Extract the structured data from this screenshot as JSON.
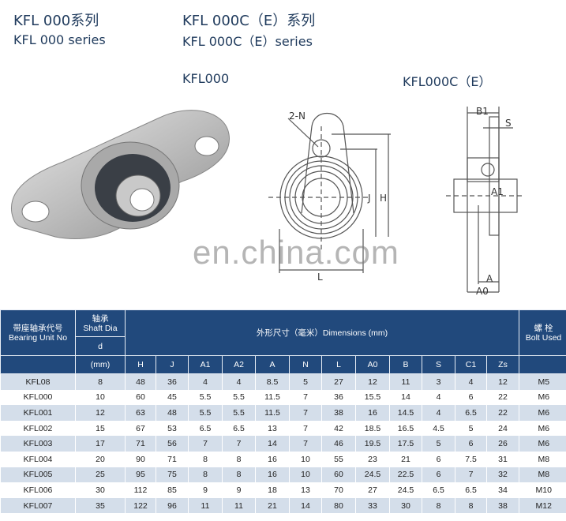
{
  "header": {
    "left_title_cn": "KFL 000系列",
    "left_title_en": "KFL 000 series",
    "right_title_cn": "KFL 000C（E）系列",
    "right_title_en": "KFL 000C（E）series",
    "label_kfl000": "KFL000",
    "label_kfl000c": "KFL000C（E）"
  },
  "drawing_labels": {
    "n": "2-N",
    "j": "J",
    "h": "H",
    "l": "L",
    "b1": "B1",
    "s": "S",
    "a1": "A1",
    "a": "A",
    "a0": "A0"
  },
  "watermark": "en.china.com",
  "table": {
    "unit_no_cn": "带座轴承代号",
    "unit_no_en": "Bearing Unit No",
    "shaft_cn": "轴承",
    "shaft_en": "Shaft Dia",
    "shaft_d": "d",
    "shaft_unit": "(mm)",
    "dims": "外形尺寸（毫米）Dimensions (mm)",
    "bolt_cn": "螺 栓",
    "bolt_en": "Bolt Used",
    "columns": [
      "H",
      "J",
      "A1",
      "A2",
      "A",
      "N",
      "L",
      "A0",
      "B",
      "S",
      "C1",
      "Zs"
    ],
    "rows": [
      [
        "KFL08",
        "8",
        "48",
        "36",
        "4",
        "4",
        "8.5",
        "5",
        "27",
        "12",
        "11",
        "3",
        "4",
        "12",
        "M5"
      ],
      [
        "KFL000",
        "10",
        "60",
        "45",
        "5.5",
        "5.5",
        "11.5",
        "7",
        "36",
        "15.5",
        "14",
        "4",
        "6",
        "22",
        "M6"
      ],
      [
        "KFL001",
        "12",
        "63",
        "48",
        "5.5",
        "5.5",
        "11.5",
        "7",
        "38",
        "16",
        "14.5",
        "4",
        "6.5",
        "22",
        "M6"
      ],
      [
        "KFL002",
        "15",
        "67",
        "53",
        "6.5",
        "6.5",
        "13",
        "7",
        "42",
        "18.5",
        "16.5",
        "4.5",
        "5",
        "24",
        "M6"
      ],
      [
        "KFL003",
        "17",
        "71",
        "56",
        "7",
        "7",
        "14",
        "7",
        "46",
        "19.5",
        "17.5",
        "5",
        "6",
        "26",
        "M6"
      ],
      [
        "KFL004",
        "20",
        "90",
        "71",
        "8",
        "8",
        "16",
        "10",
        "55",
        "23",
        "21",
        "6",
        "7.5",
        "31",
        "M8"
      ],
      [
        "KFL005",
        "25",
        "95",
        "75",
        "8",
        "8",
        "16",
        "10",
        "60",
        "24.5",
        "22.5",
        "6",
        "7",
        "32",
        "M8"
      ],
      [
        "KFL006",
        "30",
        "112",
        "85",
        "9",
        "9",
        "18",
        "13",
        "70",
        "27",
        "24.5",
        "6.5",
        "6.5",
        "34",
        "M10"
      ],
      [
        "KFL007",
        "35",
        "122",
        "96",
        "11",
        "11",
        "21",
        "14",
        "80",
        "33",
        "30",
        "8",
        "8",
        "38",
        "M12"
      ]
    ]
  }
}
